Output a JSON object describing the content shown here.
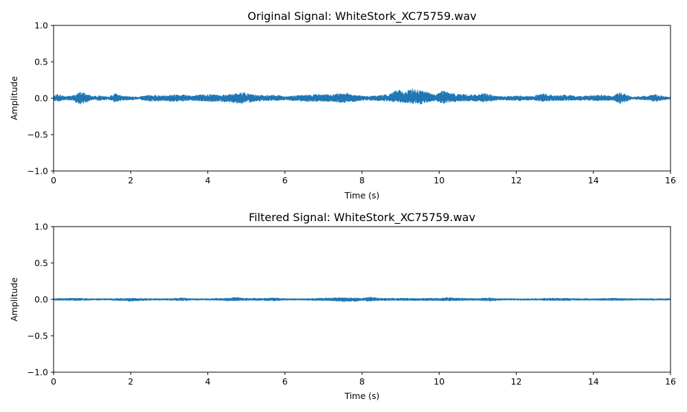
{
  "chart_data": [
    {
      "type": "line",
      "title": "Original Signal: WhiteStork_XC75759.wav",
      "xlabel": "Time (s)",
      "ylabel": "Amplitude",
      "xlim": [
        0,
        16
      ],
      "ylim": [
        -1.0,
        1.0
      ],
      "xticks": [
        "0",
        "2",
        "4",
        "6",
        "8",
        "10",
        "12",
        "14",
        "16"
      ],
      "yticks": [
        "−1.0",
        "−0.5",
        "0.0",
        "0.5",
        "1.0"
      ],
      "grid": false,
      "color": "#1f77b4",
      "envelope": {
        "t": [
          0.0,
          0.1,
          0.3,
          0.5,
          0.7,
          0.8,
          1.0,
          1.2,
          1.4,
          1.6,
          1.8,
          2.0,
          2.2,
          2.5,
          2.8,
          3.0,
          3.3,
          3.6,
          4.0,
          4.3,
          4.6,
          4.9,
          5.2,
          5.5,
          5.8,
          6.0,
          6.3,
          6.6,
          6.9,
          7.2,
          7.5,
          7.8,
          8.1,
          8.4,
          8.7,
          8.9,
          9.1,
          9.3,
          9.5,
          9.7,
          9.9,
          10.1,
          10.3,
          10.6,
          10.9,
          11.2,
          11.5,
          11.8,
          12.1,
          12.4,
          12.7,
          13.0,
          13.3,
          13.6,
          13.9,
          14.2,
          14.5,
          14.7,
          15.0,
          15.3,
          15.6,
          15.9,
          16.0
        ],
        "upper": [
          0.03,
          0.06,
          0.03,
          0.04,
          0.09,
          0.08,
          0.03,
          0.04,
          0.02,
          0.07,
          0.03,
          0.03,
          0.02,
          0.05,
          0.04,
          0.05,
          0.06,
          0.04,
          0.06,
          0.05,
          0.06,
          0.09,
          0.05,
          0.04,
          0.05,
          0.03,
          0.04,
          0.05,
          0.06,
          0.05,
          0.09,
          0.05,
          0.03,
          0.04,
          0.06,
          0.13,
          0.08,
          0.14,
          0.12,
          0.09,
          0.05,
          0.12,
          0.07,
          0.06,
          0.05,
          0.07,
          0.03,
          0.03,
          0.04,
          0.03,
          0.07,
          0.04,
          0.05,
          0.03,
          0.04,
          0.05,
          0.03,
          0.09,
          0.02,
          0.03,
          0.06,
          0.02,
          0.02
        ],
        "lower": [
          -0.03,
          -0.05,
          -0.03,
          -0.04,
          -0.09,
          -0.07,
          -0.03,
          -0.04,
          -0.02,
          -0.06,
          -0.03,
          -0.03,
          -0.02,
          -0.05,
          -0.04,
          -0.05,
          -0.05,
          -0.04,
          -0.05,
          -0.05,
          -0.06,
          -0.08,
          -0.05,
          -0.04,
          -0.04,
          -0.03,
          -0.04,
          -0.05,
          -0.05,
          -0.05,
          -0.07,
          -0.05,
          -0.03,
          -0.04,
          -0.05,
          -0.06,
          -0.07,
          -0.08,
          -0.09,
          -0.06,
          -0.05,
          -0.08,
          -0.06,
          -0.05,
          -0.05,
          -0.06,
          -0.03,
          -0.03,
          -0.04,
          -0.03,
          -0.05,
          -0.04,
          -0.04,
          -0.03,
          -0.04,
          -0.04,
          -0.03,
          -0.08,
          -0.02,
          -0.03,
          -0.05,
          -0.02,
          -0.02
        ]
      }
    },
    {
      "type": "line",
      "title": "Filtered Signal: WhiteStork_XC75759.wav",
      "xlabel": "Time (s)",
      "ylabel": "Amplitude",
      "xlim": [
        0,
        16
      ],
      "ylim": [
        -1.0,
        1.0
      ],
      "xticks": [
        "0",
        "2",
        "4",
        "6",
        "8",
        "10",
        "12",
        "14",
        "16"
      ],
      "yticks": [
        "−1.0",
        "−0.5",
        "0.0",
        "0.5",
        "1.0"
      ],
      "grid": false,
      "color": "#1f77b4",
      "envelope": {
        "t": [
          0.0,
          0.5,
          1.0,
          1.5,
          2.0,
          2.5,
          3.0,
          3.3,
          3.6,
          4.0,
          4.4,
          4.7,
          5.0,
          5.4,
          5.7,
          6.0,
          6.5,
          7.0,
          7.4,
          7.7,
          8.0,
          8.2,
          8.5,
          9.0,
          9.5,
          10.0,
          10.2,
          10.6,
          11.0,
          11.3,
          11.6,
          12.0,
          12.5,
          12.9,
          13.3,
          13.7,
          14.0,
          14.5,
          15.0,
          15.5,
          16.0
        ],
        "upper": [
          0.015,
          0.02,
          0.015,
          0.015,
          0.02,
          0.015,
          0.015,
          0.025,
          0.015,
          0.015,
          0.02,
          0.03,
          0.02,
          0.02,
          0.025,
          0.015,
          0.015,
          0.02,
          0.03,
          0.025,
          0.02,
          0.035,
          0.02,
          0.02,
          0.02,
          0.02,
          0.03,
          0.02,
          0.015,
          0.025,
          0.015,
          0.015,
          0.015,
          0.02,
          0.02,
          0.015,
          0.015,
          0.02,
          0.015,
          0.015,
          0.015
        ],
        "lower": [
          -0.015,
          -0.02,
          -0.015,
          -0.015,
          -0.03,
          -0.015,
          -0.015,
          -0.025,
          -0.015,
          -0.015,
          -0.02,
          -0.025,
          -0.02,
          -0.02,
          -0.025,
          -0.015,
          -0.015,
          -0.02,
          -0.03,
          -0.035,
          -0.02,
          -0.03,
          -0.02,
          -0.02,
          -0.02,
          -0.02,
          -0.025,
          -0.02,
          -0.015,
          -0.03,
          -0.015,
          -0.015,
          -0.015,
          -0.02,
          -0.02,
          -0.015,
          -0.015,
          -0.02,
          -0.015,
          -0.015,
          -0.015
        ]
      }
    }
  ]
}
